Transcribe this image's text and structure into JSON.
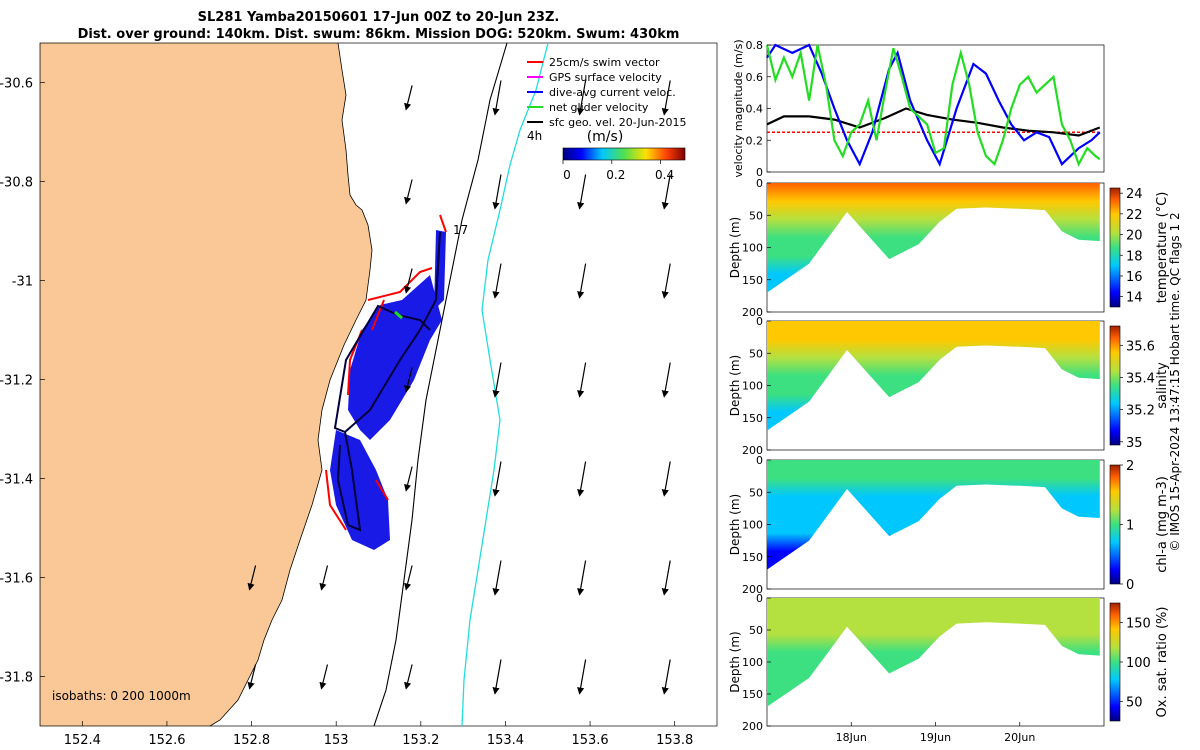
{
  "header": {
    "title_line1": "SL281 Yamba20150601 17-Jun 00Z to 20-Jun 23Z.",
    "title_line2": "Dist. over ground: 140km. Dist. swum: 86km. Mission DOG: 520km. Swum: 430km"
  },
  "side_label": "© IMOS 15-Apr-2024 13:47:15 Hobart time. QC flags 1  2",
  "colors": {
    "land": "#F9C896",
    "swim_vector": "#ff0000",
    "gps_velocity": "#ff00ff",
    "dive_avg_current": "#0000ff",
    "net_glider": "#22dd22",
    "sfc_geo": "#000000",
    "contour_200m": "#000000",
    "contour_1000m": "#22dddd"
  },
  "map": {
    "xlim": [
      152.3,
      153.9
    ],
    "ylim": [
      -31.9,
      -30.52
    ],
    "xticks": [
      "152.4",
      "152.6",
      "152.8",
      "153",
      "153.2",
      "153.4",
      "153.6",
      "153.8"
    ],
    "yticks": [
      "-30.6",
      "-30.8",
      "-31",
      "-31.2",
      "-31.4",
      "-31.6",
      "-31.8"
    ],
    "legend": [
      {
        "label": "25cm/s swim vector",
        "color": "#ff0000"
      },
      {
        "label": "GPS surface velocity",
        "color": "#ff00ff"
      },
      {
        "label": "dive-avg current veloc.",
        "color": "#0000ff"
      },
      {
        "label": "net glider velocity",
        "color": "#22dd22"
      },
      {
        "label": "sfc geo. vel. 20-Jun-2015",
        "color": "#000000"
      }
    ],
    "label_4h": "4h",
    "label_17": "17",
    "colorbar_title": "(m/s)",
    "colorbar_ticks": [
      "0",
      "0.2",
      "0.4"
    ],
    "isobaths_label": "isobaths: 0   200  1000m"
  },
  "chart_data": [
    {
      "type": "line",
      "title": "",
      "xlabel": "",
      "ylabel": "velocity magnitude (m/s)",
      "x_units": "days from 17-Jun-2015 00Z",
      "xlim": [
        0,
        4
      ],
      "ylim": [
        0,
        0.8
      ],
      "yticks": [
        "0",
        "0.2",
        "0.4",
        "0.6",
        "0.8"
      ],
      "series": [
        {
          "color": "#ff0000",
          "values": [
            [
              0,
              0.25
            ],
            [
              0.5,
              0.25
            ],
            [
              1.0,
              0.25
            ],
            [
              1.5,
              0.25
            ],
            [
              2.0,
              0.25
            ],
            [
              2.5,
              0.25
            ],
            [
              3.0,
              0.25
            ],
            [
              3.5,
              0.25
            ],
            [
              3.95,
              0.25
            ]
          ]
        },
        {
          "color": "#000000",
          "values": [
            [
              0,
              0.3
            ],
            [
              0.2,
              0.35
            ],
            [
              0.5,
              0.35
            ],
            [
              0.8,
              0.33
            ],
            [
              1.1,
              0.28
            ],
            [
              1.4,
              0.34
            ],
            [
              1.65,
              0.4
            ],
            [
              1.9,
              0.36
            ],
            [
              2.2,
              0.33
            ],
            [
              2.5,
              0.31
            ],
            [
              2.8,
              0.28
            ],
            [
              3.1,
              0.26
            ],
            [
              3.4,
              0.25
            ],
            [
              3.7,
              0.23
            ],
            [
              3.95,
              0.28
            ]
          ]
        },
        {
          "color": "#0000ff",
          "values": [
            [
              0,
              0.72
            ],
            [
              0.1,
              0.8
            ],
            [
              0.3,
              0.75
            ],
            [
              0.5,
              0.8
            ],
            [
              0.65,
              0.62
            ],
            [
              0.8,
              0.4
            ],
            [
              0.95,
              0.2
            ],
            [
              1.1,
              0.05
            ],
            [
              1.25,
              0.25
            ],
            [
              1.45,
              0.65
            ],
            [
              1.55,
              0.75
            ],
            [
              1.7,
              0.45
            ],
            [
              1.9,
              0.2
            ],
            [
              2.05,
              0.05
            ],
            [
              2.25,
              0.4
            ],
            [
              2.45,
              0.68
            ],
            [
              2.6,
              0.62
            ],
            [
              2.75,
              0.45
            ],
            [
              2.9,
              0.3
            ],
            [
              3.05,
              0.2
            ],
            [
              3.2,
              0.25
            ],
            [
              3.35,
              0.22
            ],
            [
              3.5,
              0.05
            ],
            [
              3.7,
              0.15
            ],
            [
              3.85,
              0.2
            ],
            [
              3.95,
              0.25
            ]
          ]
        },
        {
          "color": "#22dd22",
          "values": [
            [
              0,
              0.8
            ],
            [
              0.1,
              0.58
            ],
            [
              0.2,
              0.72
            ],
            [
              0.3,
              0.6
            ],
            [
              0.4,
              0.75
            ],
            [
              0.5,
              0.45
            ],
            [
              0.6,
              0.8
            ],
            [
              0.7,
              0.55
            ],
            [
              0.8,
              0.2
            ],
            [
              0.9,
              0.1
            ],
            [
              1.0,
              0.25
            ],
            [
              1.1,
              0.3
            ],
            [
              1.2,
              0.45
            ],
            [
              1.3,
              0.2
            ],
            [
              1.4,
              0.5
            ],
            [
              1.5,
              0.78
            ],
            [
              1.6,
              0.6
            ],
            [
              1.7,
              0.4
            ],
            [
              1.8,
              0.35
            ],
            [
              1.9,
              0.3
            ],
            [
              2.0,
              0.12
            ],
            [
              2.1,
              0.15
            ],
            [
              2.2,
              0.55
            ],
            [
              2.3,
              0.75
            ],
            [
              2.4,
              0.55
            ],
            [
              2.5,
              0.25
            ],
            [
              2.6,
              0.1
            ],
            [
              2.7,
              0.05
            ],
            [
              2.8,
              0.2
            ],
            [
              2.9,
              0.4
            ],
            [
              3.0,
              0.55
            ],
            [
              3.1,
              0.6
            ],
            [
              3.2,
              0.5
            ],
            [
              3.3,
              0.55
            ],
            [
              3.4,
              0.6
            ],
            [
              3.5,
              0.3
            ],
            [
              3.6,
              0.2
            ],
            [
              3.7,
              0.05
            ],
            [
              3.8,
              0.15
            ],
            [
              3.9,
              0.1
            ],
            [
              3.95,
              0.08
            ]
          ]
        }
      ]
    },
    {
      "type": "heatmap",
      "variable": "temperature",
      "colorbar_label": "temperature (°C)",
      "colorbar_ticks": [
        "14",
        "16",
        "18",
        "20",
        "22",
        "24"
      ],
      "crange": [
        13,
        24.5
      ],
      "ylabel": "Depth (m)",
      "ylim": [
        0,
        200
      ],
      "yticks": [
        "0",
        "50",
        "100",
        "150",
        "200"
      ],
      "surface_value": 22.5,
      "deep_value": 14.5,
      "bottom_depth_profile": [
        [
          0,
          170
        ],
        [
          0.5,
          125
        ],
        [
          0.95,
          45
        ],
        [
          1.45,
          118
        ],
        [
          1.8,
          95
        ],
        [
          2.05,
          60
        ],
        [
          2.25,
          40
        ],
        [
          2.6,
          38
        ],
        [
          3.0,
          40
        ],
        [
          3.3,
          42
        ],
        [
          3.5,
          75
        ],
        [
          3.7,
          88
        ],
        [
          3.95,
          90
        ]
      ]
    },
    {
      "type": "heatmap",
      "variable": "salinity",
      "colorbar_label": "salinity",
      "colorbar_ticks": [
        "35",
        "35.2",
        "35.4",
        "35.6"
      ],
      "crange": [
        34.98,
        35.72
      ],
      "ylabel": "Depth (m)",
      "ylim": [
        0,
        200
      ],
      "yticks": [
        "0",
        "50",
        "100",
        "150",
        "200"
      ],
      "surface_value": 35.55,
      "deep_value": 35.1
    },
    {
      "type": "heatmap",
      "variable": "chl-a",
      "colorbar_label": "chl-a (mg m-3)",
      "colorbar_ticks": [
        "0",
        "1",
        "2"
      ],
      "crange": [
        0,
        2
      ],
      "ylabel": "Depth (m)",
      "ylim": [
        0,
        200
      ],
      "yticks": [
        "0",
        "50",
        "100",
        "150",
        "200"
      ],
      "surface_value": 0.9,
      "deep_value": 0.05
    },
    {
      "type": "heatmap",
      "variable": "oxygen saturation",
      "colorbar_label": "Ox. sat. ratio (%)",
      "colorbar_ticks": [
        "50",
        "100",
        "150"
      ],
      "crange": [
        25,
        175
      ],
      "ylabel": "Depth (m)",
      "ylim": [
        0,
        200
      ],
      "yticks": [
        "0",
        "50",
        "100",
        "150",
        "200"
      ],
      "surface_value": 112,
      "deep_value": 78,
      "xticks": [
        "18Jun",
        "19Jun",
        "20Jun"
      ]
    }
  ]
}
